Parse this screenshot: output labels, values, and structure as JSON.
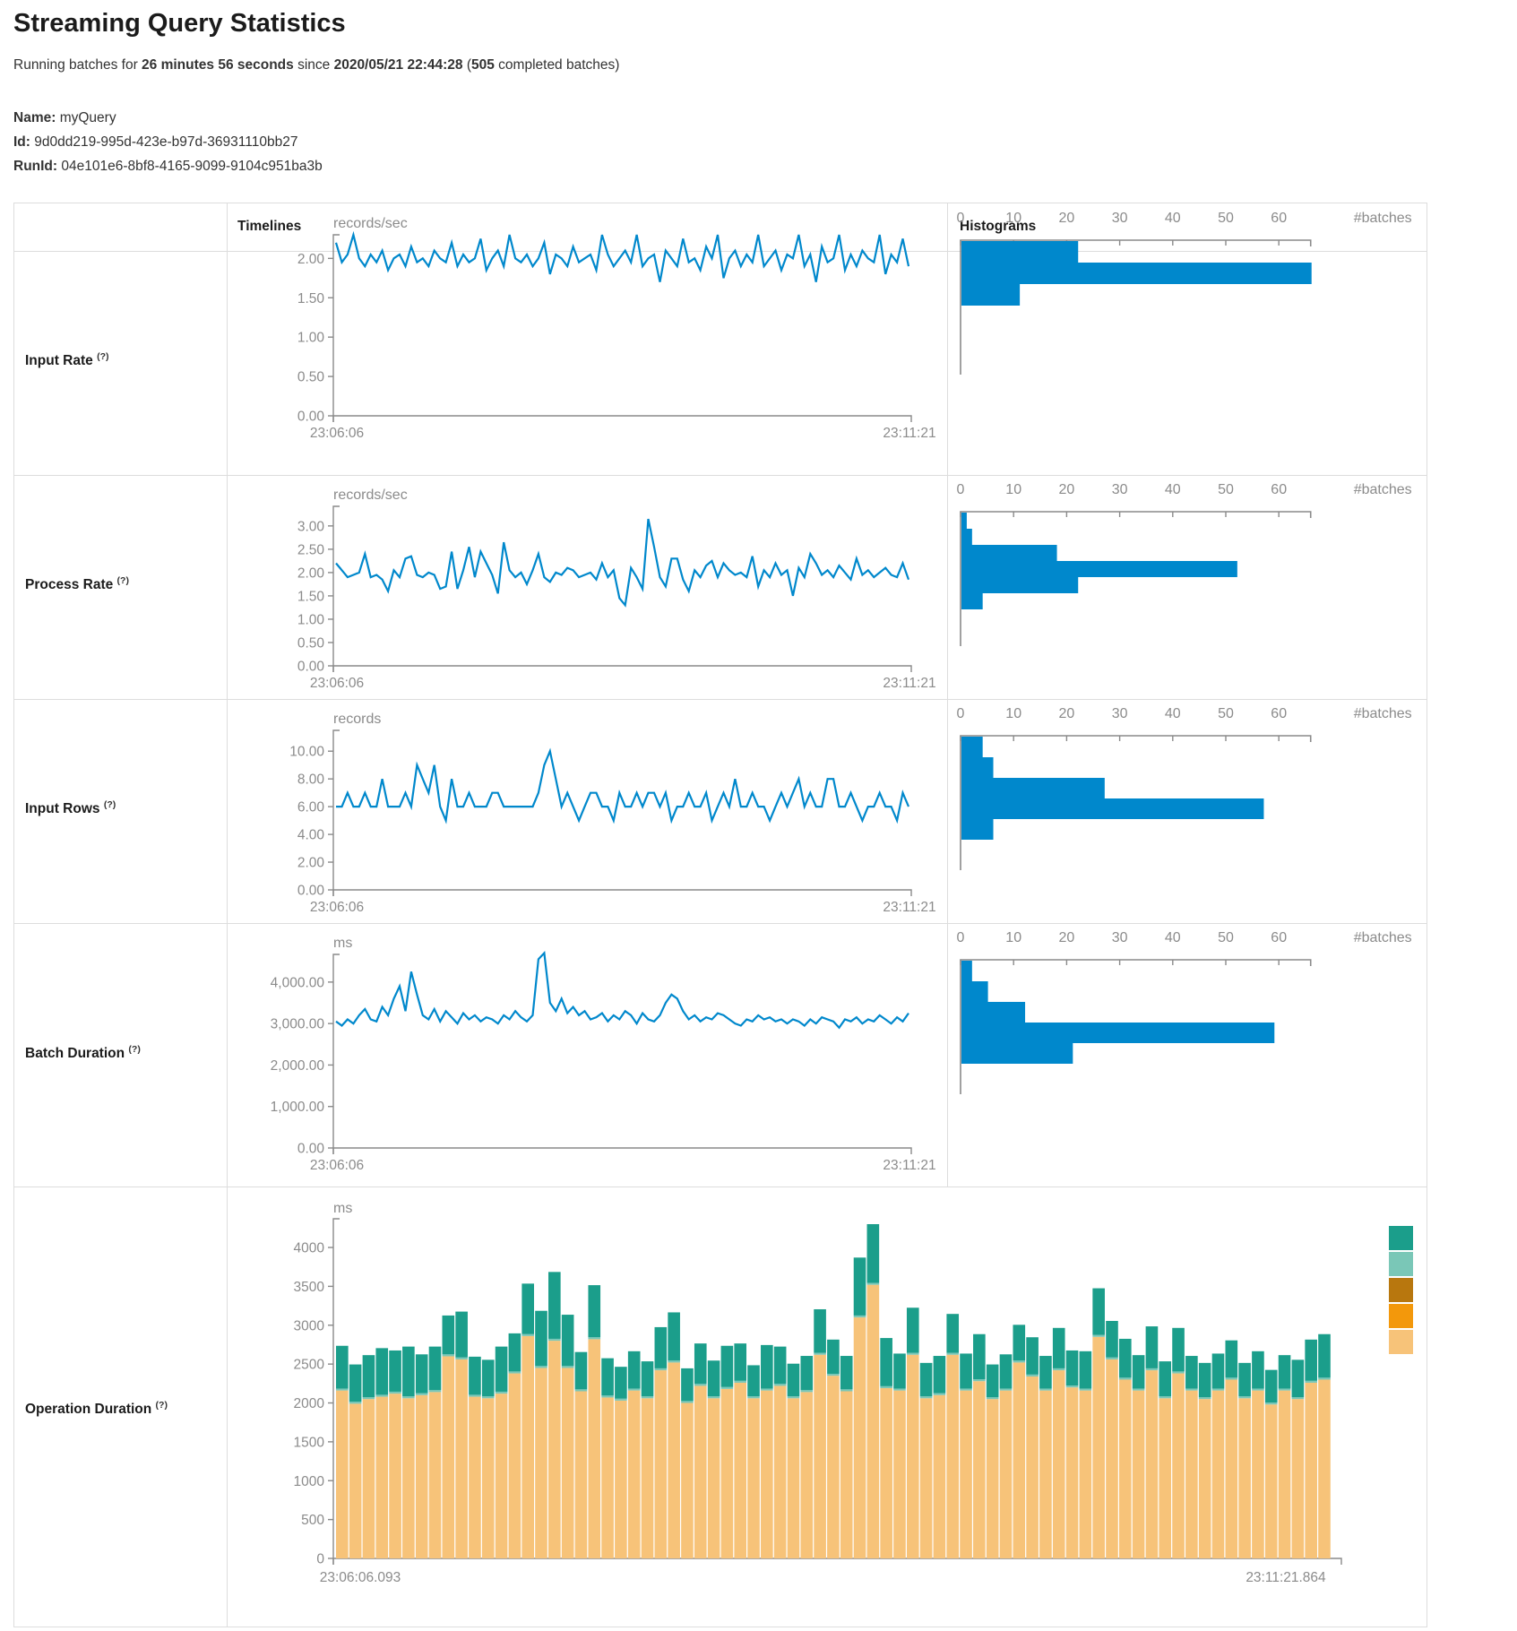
{
  "page": {
    "title": "Streaming Query Statistics",
    "subtitle": {
      "prefix": "Running batches for ",
      "duration": "26 minutes 56 seconds",
      "since_word": " since ",
      "start_time": "2020/05/21 22:44:28",
      "paren_open": " (",
      "batch_count": "505",
      "suffix": " completed batches)"
    },
    "query": {
      "name_label": "Name:",
      "name": " myQuery",
      "id_label": "Id:",
      "id": " 9d0dd219-995d-423e-b97d-36931110bb27",
      "runid_label": "RunId:",
      "runid": " 04e101e6-8bf8-4165-9099-9104c951ba3b"
    }
  },
  "table": {
    "col_timelines": "Timelines",
    "col_histograms": "Histograms",
    "rows": [
      {
        "label": "Input Rate",
        "help": "(?)"
      },
      {
        "label": "Process Rate",
        "help": "(?)"
      },
      {
        "label": "Input Rows",
        "help": "(?)"
      },
      {
        "label": "Batch Duration",
        "help": "(?)"
      },
      {
        "label": "Operation Duration",
        "help": "(?)"
      }
    ]
  },
  "colors": {
    "blue": "#0088cc",
    "axis": "#8a8a8a",
    "tick_text": "#8b8b8b",
    "border": "#dddddd",
    "teal": "#1b9e8b",
    "teal_light": "#7ac7b7",
    "orange_dark": "#b8770e",
    "orange": "#f3980b",
    "tan": "#f7c379"
  },
  "chart_data": [
    {
      "type": "line",
      "name": "input-rate",
      "title": "records/sec",
      "x_start": "23:06:06",
      "x_end": "23:11:21",
      "y_tick_labels": [
        "2.00",
        "1.50",
        "1.00",
        "0.50",
        "0.00"
      ],
      "y_tick_values": [
        2,
        1.5,
        1,
        0.5,
        0
      ],
      "values": [
        2.2,
        1.95,
        2.05,
        2.3,
        2.0,
        1.9,
        2.05,
        1.95,
        2.1,
        1.85,
        2.0,
        2.05,
        1.9,
        2.15,
        1.95,
        2.0,
        1.9,
        2.1,
        2.0,
        1.95,
        2.2,
        1.9,
        2.05,
        1.95,
        2.0,
        2.25,
        1.85,
        2.0,
        2.1,
        1.9,
        2.3,
        2.0,
        1.95,
        2.05,
        1.9,
        2.0,
        2.2,
        1.8,
        2.05,
        2.0,
        1.9,
        2.15,
        1.95,
        2.0,
        2.05,
        1.85,
        2.3,
        2.05,
        1.9,
        2.0,
        2.1,
        1.95,
        2.3,
        1.9,
        2.0,
        2.05,
        1.7,
        2.1,
        2.0,
        1.9,
        2.25,
        1.95,
        2.0,
        1.85,
        2.15,
        2.0,
        2.3,
        1.75,
        2.0,
        2.1,
        1.9,
        2.05,
        1.95,
        2.3,
        1.9,
        2.0,
        2.1,
        1.85,
        2.05,
        2.0,
        2.3,
        1.9,
        2.05,
        1.7,
        2.15,
        1.95,
        2.0,
        2.3,
        1.85,
        2.05,
        1.9,
        2.1,
        2.0,
        1.95,
        2.3,
        1.8,
        2.05,
        1.95,
        2.25,
        1.9
      ],
      "histogram": {
        "tick_labels": [
          "0",
          "10",
          "20",
          "30",
          "40",
          "50",
          "60"
        ],
        "tick_values": [
          0,
          10,
          20,
          30,
          40,
          50,
          60
        ],
        "unit_label": "#batches",
        "bins": [
          22,
          66,
          11
        ]
      }
    },
    {
      "type": "line",
      "name": "process-rate",
      "title": "records/sec",
      "x_start": "23:06:06",
      "x_end": "23:11:21",
      "y_tick_labels": [
        "3.00",
        "2.50",
        "2.00",
        "1.50",
        "1.00",
        "0.50",
        "0.00"
      ],
      "y_tick_values": [
        3,
        2.5,
        2,
        1.5,
        1,
        0.5,
        0
      ],
      "values": [
        2.2,
        2.05,
        1.9,
        1.95,
        2.0,
        2.4,
        1.9,
        1.95,
        1.85,
        1.6,
        2.05,
        1.9,
        2.3,
        2.35,
        1.95,
        1.9,
        2.0,
        1.95,
        1.65,
        1.7,
        2.45,
        1.65,
        2.05,
        2.55,
        1.9,
        2.45,
        2.2,
        1.95,
        1.55,
        2.65,
        2.05,
        1.9,
        2.0,
        1.75,
        2.05,
        2.4,
        1.9,
        1.8,
        2.0,
        1.95,
        2.1,
        2.05,
        1.9,
        1.95,
        2.0,
        1.85,
        2.2,
        1.9,
        2.05,
        1.45,
        1.3,
        2.1,
        1.9,
        1.65,
        3.15,
        2.55,
        1.9,
        1.7,
        2.3,
        2.3,
        1.85,
        1.6,
        2.05,
        1.9,
        2.15,
        2.25,
        1.9,
        2.2,
        2.05,
        1.95,
        2.0,
        1.9,
        2.35,
        1.7,
        2.05,
        1.9,
        2.2,
        1.95,
        2.05,
        1.5,
        2.1,
        1.9,
        2.4,
        2.2,
        1.95,
        2.05,
        1.9,
        2.15,
        2.0,
        1.85,
        2.3,
        1.95,
        2.05,
        1.9,
        2.0,
        2.1,
        1.95,
        1.9,
        2.2,
        1.85
      ],
      "histogram": {
        "tick_labels": [
          "0",
          "10",
          "20",
          "30",
          "40",
          "50",
          "60"
        ],
        "tick_values": [
          0,
          10,
          20,
          30,
          40,
          50,
          60
        ],
        "unit_label": "#batches",
        "bins": [
          1,
          2,
          18,
          52,
          22,
          4
        ]
      }
    },
    {
      "type": "line",
      "name": "input-rows",
      "title": "records",
      "x_start": "23:06:06",
      "x_end": "23:11:21",
      "y_tick_labels": [
        "10.00",
        "8.00",
        "6.00",
        "4.00",
        "2.00",
        "0.00"
      ],
      "y_tick_values": [
        10,
        8,
        6,
        4,
        2,
        0
      ],
      "values": [
        6,
        6,
        7,
        6,
        6,
        7,
        6,
        6,
        8,
        6,
        6,
        6,
        7,
        6,
        9,
        8,
        7,
        9,
        6,
        5,
        8,
        6,
        6,
        7,
        6,
        6,
        6,
        7,
        7,
        6,
        6,
        6,
        6,
        6,
        6,
        7,
        9,
        10,
        8,
        6,
        7,
        6,
        5,
        6,
        7,
        7,
        6,
        6,
        5,
        7,
        6,
        6,
        7,
        6,
        7,
        7,
        6,
        7,
        5,
        6,
        6,
        7,
        6,
        6,
        7,
        5,
        6,
        7,
        6,
        8,
        6,
        6,
        7,
        6,
        6,
        5,
        6,
        7,
        6,
        7,
        8,
        6,
        7,
        6,
        6,
        8,
        8,
        6,
        6,
        7,
        6,
        5,
        6,
        6,
        7,
        6,
        6,
        5,
        7,
        6
      ],
      "histogram": {
        "tick_labels": [
          "0",
          "10",
          "20",
          "30",
          "40",
          "50",
          "60"
        ],
        "tick_values": [
          0,
          10,
          20,
          30,
          40,
          50,
          60
        ],
        "unit_label": "#batches",
        "bins": [
          4,
          6,
          27,
          57,
          6
        ]
      }
    },
    {
      "type": "line",
      "name": "batch-duration",
      "title": "ms",
      "x_start": "23:06:06",
      "x_end": "23:11:21",
      "y_tick_labels": [
        "4,000.00",
        "3,000.00",
        "2,000.00",
        "1,000.00",
        "0.00"
      ],
      "y_tick_values": [
        4000,
        3000,
        2000,
        1000,
        0
      ],
      "values": [
        3050,
        2950,
        3100,
        3000,
        3200,
        3350,
        3100,
        3050,
        3400,
        3200,
        3600,
        3900,
        3300,
        4250,
        3700,
        3200,
        3100,
        3350,
        3050,
        3300,
        3150,
        3000,
        3250,
        3100,
        3200,
        3050,
        3150,
        3100,
        3000,
        3200,
        3100,
        3300,
        3150,
        3050,
        3200,
        4550,
        4700,
        3500,
        3300,
        3600,
        3250,
        3400,
        3200,
        3300,
        3100,
        3150,
        3250,
        3050,
        3200,
        3100,
        3300,
        3200,
        3000,
        3250,
        3100,
        3050,
        3200,
        3500,
        3700,
        3600,
        3300,
        3100,
        3200,
        3050,
        3150,
        3100,
        3250,
        3200,
        3100,
        3000,
        2950,
        3100,
        3050,
        3200,
        3100,
        3150,
        3050,
        3100,
        3000,
        3100,
        3050,
        2950,
        3100,
        3000,
        3150,
        3100,
        3050,
        2900,
        3100,
        3050,
        3150,
        3000,
        3100,
        3050,
        3200,
        3100,
        3000,
        3150,
        3050,
        3250
      ],
      "histogram": {
        "tick_labels": [
          "0",
          "10",
          "20",
          "30",
          "40",
          "50",
          "60"
        ],
        "tick_values": [
          0,
          10,
          20,
          30,
          40,
          50,
          60
        ],
        "unit_label": "#batches",
        "bins": [
          2,
          5,
          12,
          59,
          21
        ]
      }
    },
    {
      "type": "stacked-bar",
      "name": "operation-duration",
      "title": "ms",
      "x_start": "23:06:06.093",
      "x_end": "23:11:21.864",
      "y_tick_labels": [
        "4000",
        "3500",
        "3000",
        "2500",
        "2000",
        "1500",
        "1000",
        "500",
        "0"
      ],
      "y_tick_values": [
        4000,
        3500,
        3000,
        2500,
        2000,
        1500,
        1000,
        500,
        0
      ],
      "sliver": 25,
      "series_tan": [
        2160,
        1990,
        2050,
        2080,
        2120,
        2060,
        2100,
        2140,
        2600,
        2560,
        2080,
        2060,
        2120,
        2380,
        2860,
        2450,
        2800,
        2450,
        2150,
        2820,
        2070,
        2030,
        2160,
        2060,
        2420,
        2520,
        2000,
        2220,
        2060,
        2180,
        2260,
        2060,
        2160,
        2220,
        2060,
        2140,
        2620,
        2350,
        2150,
        3100,
        3520,
        2190,
        2160,
        2620,
        2060,
        2100,
        2620,
        2160,
        2280,
        2050,
        2160,
        2520,
        2340,
        2160,
        2420,
        2200,
        2160,
        2850,
        2560,
        2300,
        2160,
        2420,
        2060,
        2380,
        2160,
        2050,
        2160,
        2300,
        2060,
        2160,
        1980,
        2160,
        2050,
        2260,
        2300
      ],
      "series_teal": [
        550,
        480,
        540,
        600,
        530,
        640,
        500,
        560,
        500,
        590,
        490,
        470,
        580,
        490,
        650,
        710,
        860,
        660,
        480,
        670,
        480,
        410,
        480,
        450,
        530,
        620,
        420,
        520,
        460,
        530,
        480,
        400,
        560,
        480,
        420,
        440,
        560,
        440,
        430,
        745,
        755,
        620,
        450,
        580,
        430,
        480,
        500,
        450,
        580,
        420,
        440,
        460,
        480,
        420,
        520,
        450,
        480,
        600,
        470,
        500,
        430,
        540,
        450,
        560,
        420,
        440,
        450,
        480,
        430,
        480,
        420,
        430,
        480,
        530,
        560
      ],
      "legend_colors": [
        "#1b9e8b",
        "#7ac7b7",
        "#b8770e",
        "#f3980b",
        "#f7c379"
      ]
    }
  ]
}
